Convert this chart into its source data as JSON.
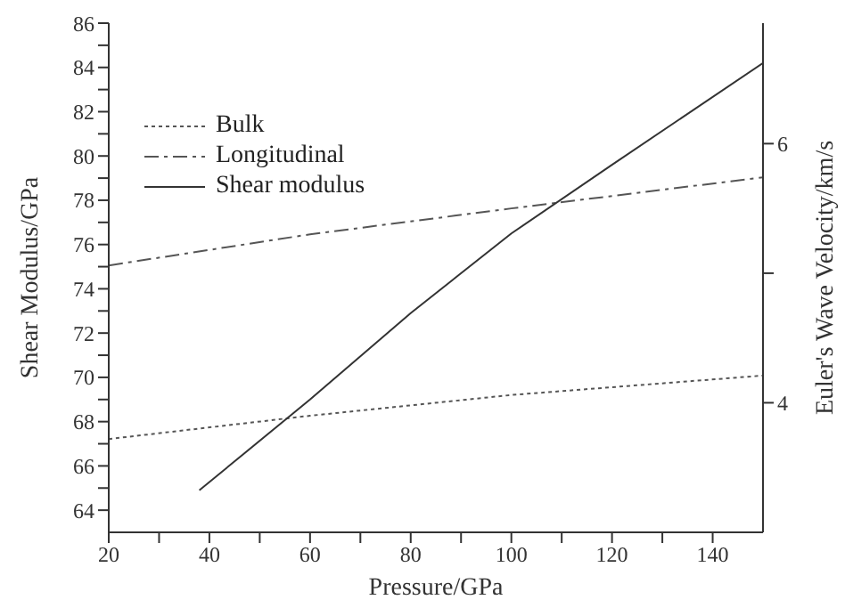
{
  "chart_data": {
    "type": "line",
    "xlabel": "Pressure/GPa",
    "ylabel": "Shear Modulus/GPa",
    "y2label": "Euler's Wave Velocity/km/s",
    "xlim": [
      20,
      150
    ],
    "xticks": [
      20,
      {
        "value": 30,
        "label": null
      },
      40,
      {
        "value": 50,
        "label": null
      },
      60,
      {
        "value": 70,
        "label": null
      },
      80,
      {
        "value": 90,
        "label": null
      },
      100,
      {
        "value": 110,
        "label": null
      },
      120,
      {
        "value": 130,
        "label": null
      },
      140
    ],
    "ylim": [
      63,
      86
    ],
    "yticks": [
      64,
      {
        "value": 65,
        "label": null
      },
      66,
      {
        "value": 67,
        "label": null
      },
      68,
      {
        "value": 69,
        "label": null
      },
      70,
      {
        "value": 71,
        "label": null
      },
      72,
      {
        "value": 73,
        "label": null
      },
      74,
      {
        "value": 75,
        "label": null
      },
      76,
      {
        "value": 77,
        "label": null
      },
      78,
      {
        "value": 79,
        "label": null
      },
      80,
      {
        "value": 81,
        "label": null
      },
      82,
      {
        "value": 83,
        "label": null
      },
      84,
      {
        "value": 85,
        "label": null
      },
      86
    ],
    "y2lim": [
      3,
      6.93
    ],
    "y2ticks": [
      4,
      {
        "value": 5,
        "label": null
      },
      6
    ],
    "legend": "top left",
    "grid": false,
    "marker": "none",
    "series": [
      {
        "name": "Bulk",
        "color": "#555555",
        "axis": "y2",
        "line_style": "dotted",
        "x": [
          20,
          60,
          100,
          150
        ],
        "values": [
          3.72,
          3.9,
          4.06,
          4.21
        ]
      },
      {
        "name": "Longitudinal",
        "color": "#555555",
        "axis": "y2",
        "line_style": "dashdot",
        "x": [
          20,
          60,
          100,
          150
        ],
        "values": [
          5.06,
          5.3,
          5.5,
          5.74
        ]
      },
      {
        "name": "Shear modulus",
        "color": "#333333",
        "line_style": "solid",
        "x": [
          38,
          60,
          80,
          100,
          120,
          150
        ],
        "values": [
          64.9,
          69.0,
          72.9,
          76.5,
          79.6,
          84.2
        ]
      }
    ]
  }
}
